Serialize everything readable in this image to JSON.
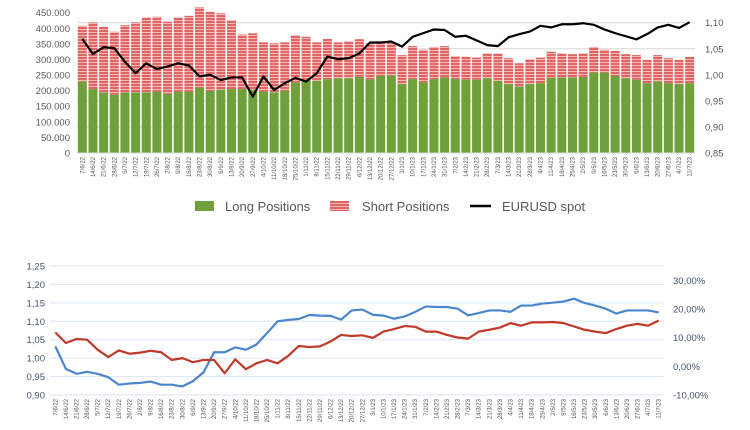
{
  "chart_data": [
    {
      "type": "bar",
      "stacked": true,
      "categories": [
        "7/6/22",
        "14/6/22",
        "21/6/22",
        "28/6/22",
        "5/7/22",
        "12/7/22",
        "19/7/22",
        "26/7/22",
        "2/8/22",
        "9/8/22",
        "16/8/22",
        "23/8/22",
        "30/8/22",
        "6/9/22",
        "13/9/22",
        "20/9/22",
        "27/9/22",
        "4/10/22",
        "11/10/22",
        "18/10/22",
        "25/10/22",
        "1/11/22",
        "8/11/22",
        "15/11/22",
        "22/11/22",
        "29/11/22",
        "6/12/22",
        "13/12/22",
        "20/12/22",
        "27/12/22",
        "3/1/23",
        "10/1/23",
        "17/1/23",
        "24/1/23",
        "31/1/23",
        "7/2/23",
        "14/2/23",
        "21/2/23",
        "28/2/23",
        "7/3/23",
        "14/3/23",
        "21/3/23",
        "28/3/23",
        "4/4/23",
        "11/4/23",
        "18/4/23",
        "25/4/23",
        "2/5/23",
        "9/5/23",
        "16/5/23",
        "23/5/23",
        "30/5/23",
        "6/6/23",
        "13/6/23",
        "20/6/23",
        "27/6/23",
        "4/7/23",
        "11/7/23"
      ],
      "series": [
        {
          "name": "Long Positions",
          "color": "#70a03c",
          "axis": "left",
          "values": [
            229000,
            205000,
            194000,
            187000,
            194000,
            194000,
            194000,
            197000,
            190000,
            197000,
            197000,
            210000,
            199000,
            203000,
            205000,
            205000,
            203000,
            197000,
            194000,
            199000,
            226000,
            235000,
            231000,
            237000,
            240000,
            240000,
            244000,
            236000,
            247000,
            249000,
            221000,
            237000,
            226000,
            237000,
            243000,
            237000,
            235000,
            235000,
            240000,
            231000,
            221000,
            213000,
            221000,
            224000,
            242000,
            242000,
            242000,
            244000,
            258000,
            258000,
            247000,
            240000,
            235000,
            224000,
            229000,
            224000,
            221000,
            224000
          ]
        },
        {
          "name": "Short Positions",
          "color": "#d9534f",
          "axis": "left",
          "values": [
            179000,
            214000,
            211000,
            202000,
            216000,
            225000,
            241000,
            240000,
            231000,
            238000,
            243000,
            257000,
            254000,
            245000,
            221000,
            175000,
            181000,
            158000,
            158000,
            156000,
            152000,
            138000,
            124000,
            129000,
            115000,
            118000,
            121000,
            116000,
            105000,
            105000,
            93000,
            106000,
            105000,
            103000,
            100000,
            74000,
            74000,
            71000,
            80000,
            89000,
            83000,
            75000,
            80000,
            82000,
            83000,
            78000,
            75000,
            76000,
            82000,
            73000,
            81000,
            77000,
            79000,
            75000,
            85000,
            80000,
            78000,
            84000
          ]
        },
        {
          "name": "EURUSD spot",
          "type": "line",
          "color": "#000000",
          "axis": "right",
          "values": [
            1.069,
            1.04,
            1.053,
            1.051,
            1.025,
            1.003,
            1.022,
            1.011,
            1.016,
            1.022,
            1.018,
            0.997,
            1.0,
            0.99,
            0.995,
            0.995,
            0.958,
            0.997,
            0.971,
            0.984,
            0.994,
            0.987,
            1.003,
            1.035,
            1.03,
            1.032,
            1.041,
            1.062,
            1.062,
            1.064,
            1.054,
            1.073,
            1.08,
            1.087,
            1.086,
            1.073,
            1.075,
            1.066,
            1.057,
            1.055,
            1.072,
            1.078,
            1.083,
            1.094,
            1.091,
            1.097,
            1.097,
            1.099,
            1.096,
            1.087,
            1.08,
            1.074,
            1.068,
            1.078,
            1.091,
            1.096,
            1.09,
            1.101
          ]
        }
      ],
      "y_left": {
        "range": [
          0,
          450000
        ],
        "ticks": [
          "0",
          "50.000",
          "100.000",
          "150.000",
          "200.000",
          "250.000",
          "300.000",
          "350.000",
          "400.000",
          "450.000"
        ]
      },
      "y_right": {
        "range": [
          0.85,
          1.1
        ],
        "ticks": [
          "0,85",
          "0,90",
          "0,95",
          "1,00",
          "1,05",
          "1,10"
        ]
      },
      "grid": true,
      "legend": {
        "position": "bottom",
        "items": [
          "Long Positions",
          "Short Positions",
          "EURUSD spot"
        ]
      }
    },
    {
      "type": "line",
      "categories_ref": "same as first chart",
      "series": [
        {
          "color": "#c0392b",
          "axis": "left",
          "values": [
            1.07,
            1.041,
            1.052,
            1.05,
            1.023,
            1.003,
            1.021,
            1.012,
            1.015,
            1.02,
            1.016,
            0.995,
            1.0,
            0.989,
            0.995,
            0.995,
            0.959,
            0.997,
            0.97,
            0.986,
            0.995,
            0.986,
            1.006,
            1.033,
            1.03,
            1.032,
            1.045,
            1.063,
            1.06,
            1.062,
            1.055,
            1.072,
            1.079,
            1.087,
            1.085,
            1.072,
            1.072,
            1.063,
            1.056,
            1.053,
            1.072,
            1.077,
            1.083,
            1.095,
            1.088,
            1.097,
            1.097,
            1.098,
            1.095,
            1.086,
            1.077,
            1.072,
            1.068,
            1.079,
            1.088,
            1.093,
            1.088,
            1.102
          ]
        },
        {
          "color": "#4a86d0",
          "axis": "right",
          "values": [
            7.0,
            -0.9,
            -2.6,
            -1.9,
            -2.6,
            -3.8,
            -6.4,
            -6.0,
            -5.8,
            -5.3,
            -6.4,
            -6.4,
            -7.0,
            -5.2,
            -2.1,
            4.9,
            4.9,
            6.6,
            5.8,
            7.6,
            11.6,
            15.7,
            16.2,
            16.5,
            17.9,
            17.7,
            17.6,
            16.3,
            19.5,
            19.8,
            18.0,
            17.7,
            16.6,
            17.4,
            19.0,
            20.9,
            20.7,
            20.7,
            20.1,
            17.8,
            18.6,
            19.5,
            19.5,
            19.0,
            21.2,
            21.2,
            21.9,
            22.2,
            22.6,
            23.6,
            22.1,
            21.2,
            20.1,
            18.4,
            19.5,
            19.5,
            19.5,
            18.8
          ]
        }
      ],
      "y_left": {
        "range": [
          0.9,
          1.25
        ],
        "ticks": [
          "0,90",
          "0,95",
          "1,00",
          "1,05",
          "1,10",
          "1,15",
          "1,20",
          "1,25"
        ]
      },
      "y_right": {
        "range": [
          -10,
          35
        ],
        "unit": "%",
        "ticks": [
          "-10,00%",
          "0,00%",
          "10,00%",
          "20,00%",
          "30,00%"
        ]
      },
      "grid": true
    }
  ]
}
